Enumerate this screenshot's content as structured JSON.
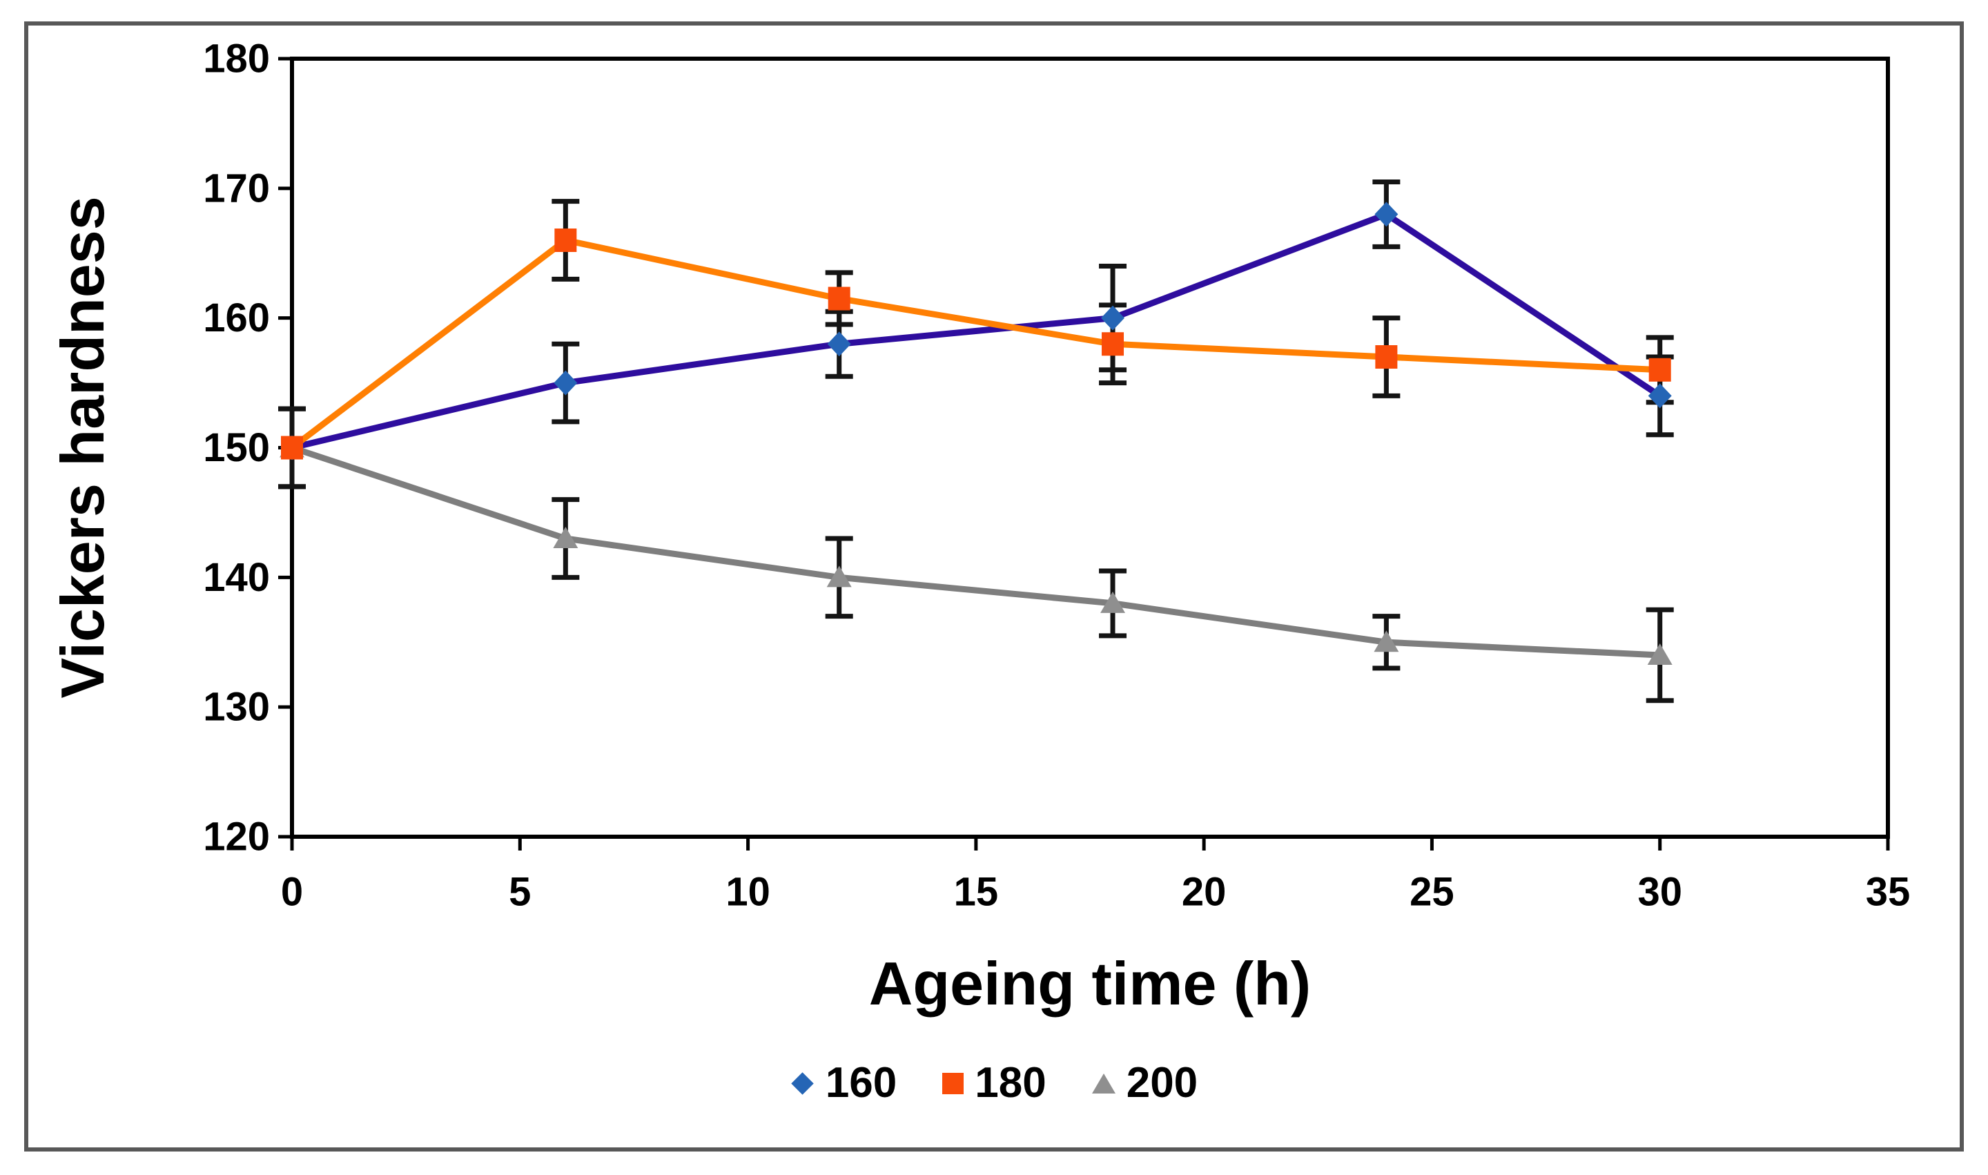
{
  "figure": {
    "outer_border_color": "#585858",
    "background": "#ffffff",
    "text_color": "#000000"
  },
  "chart_data": {
    "type": "line",
    "title": "",
    "xlabel": "Ageing time (h)",
    "ylabel": "Vickers hardness",
    "xlim": [
      0,
      35
    ],
    "ylim": [
      120,
      180
    ],
    "x_ticks": [
      0,
      5,
      10,
      15,
      20,
      25,
      30,
      35
    ],
    "y_ticks": [
      120,
      130,
      140,
      150,
      160,
      170,
      180
    ],
    "grid": false,
    "legend_position": "bottom-center",
    "error_bar_color": "#141414",
    "x": [
      0,
      6,
      12,
      18,
      24,
      30
    ],
    "series": [
      {
        "name": "160",
        "marker": "diamond",
        "line_color": "#2e0d9e",
        "marker_color": "#2565b5",
        "values": [
          150,
          155,
          158,
          160,
          168,
          154
        ],
        "errors": [
          3,
          3,
          2.5,
          4,
          2.5,
          3
        ]
      },
      {
        "name": "180",
        "marker": "square",
        "line_color": "#ff7f03",
        "marker_color": "#f94c09",
        "values": [
          150,
          166,
          161.5,
          158,
          157,
          156
        ],
        "errors": [
          3,
          3,
          2,
          3,
          3,
          2.5
        ]
      },
      {
        "name": "200",
        "marker": "triangle",
        "line_color": "#7e7e7e",
        "marker_color": "#8f8f8f",
        "values": [
          150,
          143,
          140,
          138,
          135,
          134
        ],
        "errors": [
          3,
          3,
          3,
          2.5,
          2,
          3.5
        ]
      }
    ]
  }
}
